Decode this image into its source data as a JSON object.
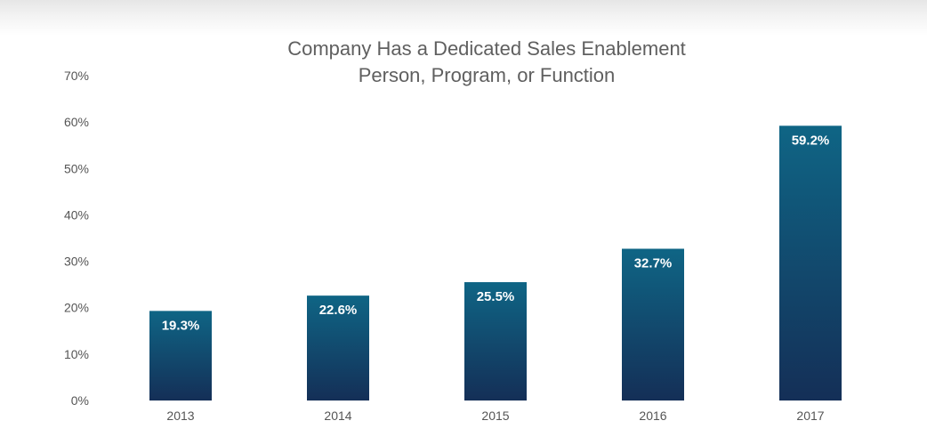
{
  "chart_data": {
    "type": "bar",
    "title_line1": "Company Has a Dedicated Sales Enablement",
    "title_line2": "Person, Program, or Function",
    "categories": [
      "2013",
      "2014",
      "2015",
      "2016",
      "2017"
    ],
    "values": [
      19.3,
      22.6,
      25.5,
      32.7,
      59.2
    ],
    "value_labels": [
      "19.3%",
      "22.6%",
      "25.5%",
      "32.7%",
      "59.2%"
    ],
    "yticks": [
      0,
      10,
      20,
      30,
      40,
      50,
      60,
      70
    ],
    "ytick_labels": [
      "0%",
      "10%",
      "20%",
      "30%",
      "40%",
      "50%",
      "60%",
      "70%"
    ],
    "ylim": [
      0,
      70
    ],
    "xlabel": "",
    "ylabel": "",
    "grid": false,
    "legend": "none",
    "colors": {
      "bar_top": "#0f6585",
      "bar_bottom": "#142f57",
      "title": "#5f5f5f",
      "tick_text": "#555555",
      "data_label": "#ffffff"
    }
  }
}
